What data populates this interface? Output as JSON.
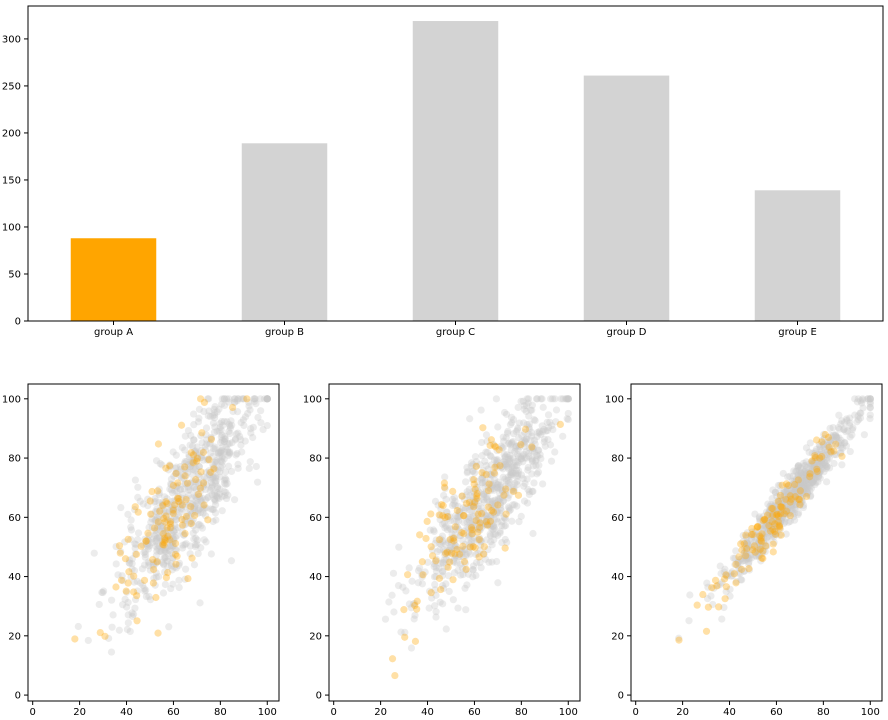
{
  "chart_data": [
    {
      "type": "bar",
      "title": "",
      "xlabel": "",
      "ylabel": "",
      "categories": [
        "group A",
        "group B",
        "group C",
        "group D",
        "group E"
      ],
      "values": [
        88,
        189,
        319,
        261,
        139
      ],
      "highlight": "group A",
      "colors": {
        "highlight": "#ffa500",
        "default": "#d3d3d3"
      },
      "ylim": [
        0,
        335
      ],
      "yticks": [
        0,
        50,
        100,
        150,
        200,
        250,
        300
      ],
      "grid": false
    },
    {
      "type": "scatter",
      "title": "",
      "xlabel": "",
      "ylabel": "",
      "xlim": [
        -2,
        105
      ],
      "ylim": [
        -2,
        105
      ],
      "xticks": [
        0,
        20,
        40,
        60,
        80,
        100
      ],
      "yticks": [
        0,
        20,
        40,
        60,
        80,
        100
      ],
      "spread": 11,
      "colors": {
        "highlight": "#ffa500",
        "default": "#c8c8c8"
      },
      "grid": false
    },
    {
      "type": "scatter",
      "title": "",
      "xlabel": "",
      "ylabel": "",
      "xlim": [
        -2,
        105
      ],
      "ylim": [
        -2,
        105
      ],
      "xticks": [
        0,
        20,
        40,
        60,
        80,
        100
      ],
      "yticks": [
        0,
        20,
        40,
        60,
        80,
        100
      ],
      "spread": 10,
      "colors": {
        "highlight": "#ffa500",
        "default": "#c8c8c8"
      },
      "grid": false
    },
    {
      "type": "scatter",
      "title": "",
      "xlabel": "",
      "ylabel": "",
      "xlim": [
        -2,
        105
      ],
      "ylim": [
        -2,
        105
      ],
      "xticks": [
        0,
        20,
        40,
        60,
        80,
        100
      ],
      "yticks": [
        0,
        20,
        40,
        60,
        80,
        100
      ],
      "spread": 4,
      "colors": {
        "highlight": "#ffa500",
        "default": "#c8c8c8"
      },
      "grid": false
    }
  ]
}
